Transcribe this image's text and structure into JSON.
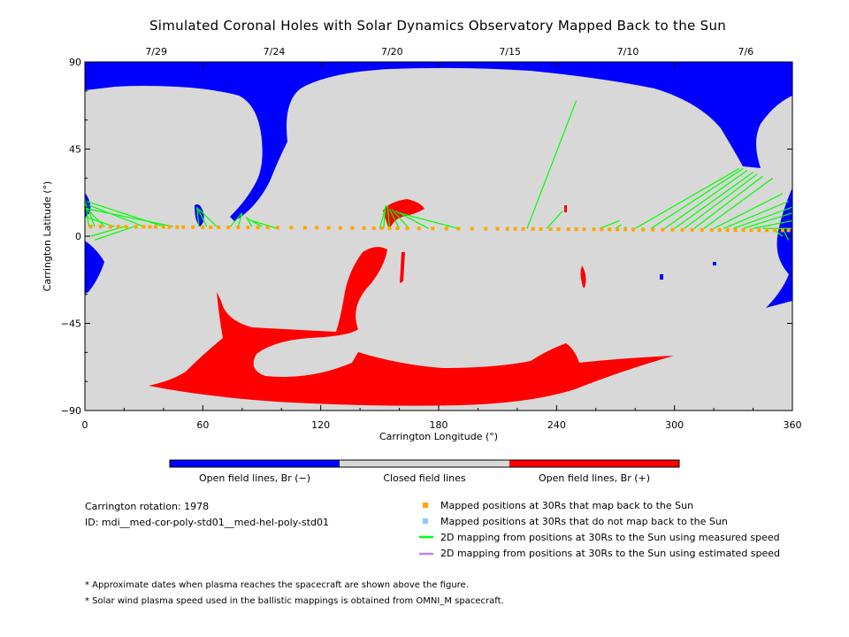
{
  "chart_data": {
    "type": "heatmap",
    "title": "Simulated Coronal Holes with Solar Dynamics Observatory Mapped Back to the Sun",
    "xlabel": "Carrington Longitude (°)",
    "ylabel": "Carrington Latitude (°)",
    "xlim": [
      0,
      360
    ],
    "ylim": [
      -90,
      90
    ],
    "x_ticks": [
      0,
      60,
      120,
      180,
      240,
      300,
      360
    ],
    "y_ticks": [
      -90,
      -45,
      0,
      45,
      90
    ],
    "top_axis_dates": [
      {
        "label": "7/29",
        "lon": 30
      },
      {
        "label": "7/24",
        "lon": 90
      },
      {
        "label": "7/20",
        "lon": 150
      },
      {
        "label": "7/15",
        "lon": 210
      },
      {
        "label": "7/10",
        "lon": 270
      },
      {
        "label": "7/6",
        "lon": 330
      }
    ],
    "colors": {
      "open_negative": "#0000ff",
      "closed": "#d8d8d8",
      "open_positive": "#ff0000",
      "mapped_points": "#ffa500",
      "unmapped_points": "#87cefa",
      "measured_lines": "#00ff00",
      "estimated_lines": "#c080ff"
    },
    "colorbar": [
      {
        "label": "Open field lines, Br (−)"
      },
      {
        "label": "Closed field lines"
      },
      {
        "label": "Open field lines, Br (+)"
      }
    ],
    "footpoints": [
      [
        45,
        6
      ],
      [
        60,
        5
      ],
      [
        65,
        5
      ],
      [
        75,
        6
      ],
      [
        82,
        10
      ],
      [
        90,
        6
      ],
      [
        155,
        16
      ],
      [
        245,
        5
      ],
      [
        275,
        7
      ],
      [
        325,
        15
      ],
      [
        335,
        35
      ],
      [
        345,
        25
      ],
      [
        350,
        20
      ],
      [
        355,
        12
      ],
      [
        358,
        8
      ],
      [
        249,
        70
      ]
    ],
    "mapping_lines": [
      {
        "lon": 2,
        "lat": 5,
        "foot": [
          0,
          20
        ]
      },
      {
        "lon": 5,
        "lat": 5,
        "foot": [
          0,
          18
        ]
      },
      {
        "lon": 10,
        "lat": 5,
        "foot": [
          0,
          15
        ]
      },
      {
        "lon": 15,
        "lat": 5,
        "foot": [
          0,
          10
        ]
      },
      {
        "lon": 20,
        "lat": 5,
        "foot": [
          3,
          0
        ]
      },
      {
        "lon": 25,
        "lat": 5,
        "foot": [
          5,
          -2
        ]
      },
      {
        "lon": 30,
        "lat": 5,
        "foot": [
          2,
          16
        ]
      },
      {
        "lon": 40,
        "lat": 5,
        "foot": [
          1,
          18
        ]
      },
      {
        "lon": 45,
        "lat": 5,
        "foot": [
          2,
          14
        ]
      },
      {
        "lon": 58,
        "lat": 5,
        "foot": [
          57,
          15
        ]
      },
      {
        "lon": 62,
        "lat": 5,
        "foot": [
          57,
          15
        ]
      },
      {
        "lon": 67,
        "lat": 5,
        "foot": [
          58,
          14
        ]
      },
      {
        "lon": 74,
        "lat": 5,
        "foot": [
          80,
          12
        ]
      },
      {
        "lon": 78,
        "lat": 5,
        "foot": [
          80,
          12
        ]
      },
      {
        "lon": 85,
        "lat": 5,
        "foot": [
          82,
          10
        ]
      },
      {
        "lon": 90,
        "lat": 5,
        "foot": [
          83,
          9
        ]
      },
      {
        "lon": 98,
        "lat": 4,
        "foot": [
          85,
          8
        ]
      },
      {
        "lon": 150,
        "lat": 4,
        "foot": [
          153,
          15
        ]
      },
      {
        "lon": 152,
        "lat": 4,
        "foot": [
          153,
          16
        ]
      },
      {
        "lon": 155,
        "lat": 4,
        "foot": [
          154,
          16
        ]
      },
      {
        "lon": 160,
        "lat": 4,
        "foot": [
          155,
          14
        ]
      },
      {
        "lon": 165,
        "lat": 4,
        "foot": [
          156,
          14
        ]
      },
      {
        "lon": 175,
        "lat": 4,
        "foot": [
          158,
          13
        ]
      },
      {
        "lon": 190,
        "lat": 4,
        "foot": [
          160,
          12
        ]
      },
      {
        "lon": 225,
        "lat": 4,
        "foot": [
          250,
          70
        ]
      },
      {
        "lon": 235,
        "lat": 4,
        "foot": [
          243,
          13
        ]
      },
      {
        "lon": 262,
        "lat": 4,
        "foot": [
          272,
          8
        ]
      },
      {
        "lon": 270,
        "lat": 4,
        "foot": [
          273,
          6
        ]
      },
      {
        "lon": 275,
        "lat": 4,
        "foot": [
          275,
          5
        ]
      },
      {
        "lon": 280,
        "lat": 4,
        "foot": [
          333,
          35
        ]
      },
      {
        "lon": 288,
        "lat": 4,
        "foot": [
          335,
          35
        ]
      },
      {
        "lon": 295,
        "lat": 4,
        "foot": [
          337,
          34
        ]
      },
      {
        "lon": 300,
        "lat": 4,
        "foot": [
          340,
          33
        ]
      },
      {
        "lon": 305,
        "lat": 4,
        "foot": [
          342,
          32
        ]
      },
      {
        "lon": 310,
        "lat": 4,
        "foot": [
          345,
          31
        ]
      },
      {
        "lon": 315,
        "lat": 4,
        "foot": [
          350,
          30
        ]
      },
      {
        "lon": 320,
        "lat": 4,
        "foot": [
          355,
          22
        ]
      },
      {
        "lon": 325,
        "lat": 4,
        "foot": [
          358,
          18
        ]
      },
      {
        "lon": 330,
        "lat": 4,
        "foot": [
          360,
          15
        ]
      },
      {
        "lon": 335,
        "lat": 4,
        "foot": [
          360,
          12
        ]
      },
      {
        "lon": 340,
        "lat": 4,
        "foot": [
          360,
          8
        ]
      },
      {
        "lon": 345,
        "lat": 4,
        "foot": [
          360,
          4
        ]
      },
      {
        "lon": 350,
        "lat": 4,
        "foot": [
          355,
          0
        ]
      },
      {
        "lon": 355,
        "lat": 4,
        "foot": [
          358,
          -2
        ]
      }
    ],
    "mapped_positions_lon": [
      3,
      8,
      13,
      17,
      21,
      26,
      30,
      33,
      36,
      40,
      43,
      47,
      50,
      55,
      60,
      64,
      68,
      73,
      78,
      83,
      88,
      93,
      98,
      105,
      112,
      118,
      124,
      130,
      136,
      142,
      147,
      151,
      155,
      159,
      164,
      170,
      177,
      184,
      190,
      197,
      204,
      210,
      215,
      219,
      223,
      228,
      232,
      237,
      241,
      246,
      250,
      254,
      259,
      263,
      267,
      271,
      275,
      279,
      284,
      289,
      294,
      299,
      304,
      309,
      314,
      319,
      323,
      327,
      331,
      335,
      339,
      343,
      347,
      351,
      355,
      358
    ]
  },
  "legend": {
    "carrington_rotation": "Carrington rotation: 1978",
    "id": "ID: mdi__med-cor-poly-std01__med-hel-poly-std01",
    "items": [
      {
        "symbol": "square",
        "color": "#ffa500",
        "label": "Mapped positions at 30Rs that map back to the Sun"
      },
      {
        "symbol": "square",
        "color": "#87cefa",
        "label": "Mapped positions at 30Rs that do not map back to the Sun"
      },
      {
        "symbol": "line",
        "color": "#00ff00",
        "label": "2D mapping from positions at 30Rs to the Sun using measured speed"
      },
      {
        "symbol": "line",
        "color": "#c080ff",
        "label": "2D mapping from positions at 30Rs to the Sun using estimated speed"
      }
    ]
  },
  "footnotes": [
    "* Approximate dates when plasma reaches the spacecraft are shown above the figure.",
    "* Solar wind plasma speed used in the ballistic mappings is obtained from OMNI_M spacecraft."
  ]
}
